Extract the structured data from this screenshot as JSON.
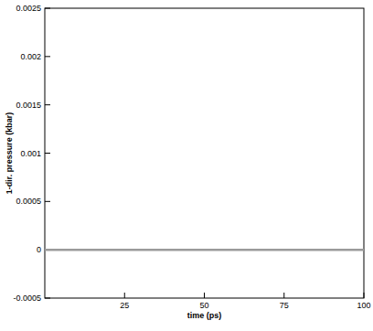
{
  "chart_data": {
    "type": "line",
    "x_label": "time (ps)",
    "y_label": "1-dir. pressure (kbar)",
    "x": [
      0,
      25,
      50,
      75,
      100
    ],
    "series": [
      {
        "name": "pressure",
        "color": "#9a9a9a",
        "values": [
          0,
          0,
          0,
          0,
          0
        ]
      }
    ],
    "xlim": [
      0,
      100
    ],
    "xticks": [
      25,
      50,
      75,
      100
    ],
    "ylim": [
      -0.0005,
      0.0025
    ],
    "yticks": [
      -0.0005,
      0,
      0.0005,
      0.001,
      0.0015,
      0.002,
      0.0025
    ],
    "grid": false
  }
}
